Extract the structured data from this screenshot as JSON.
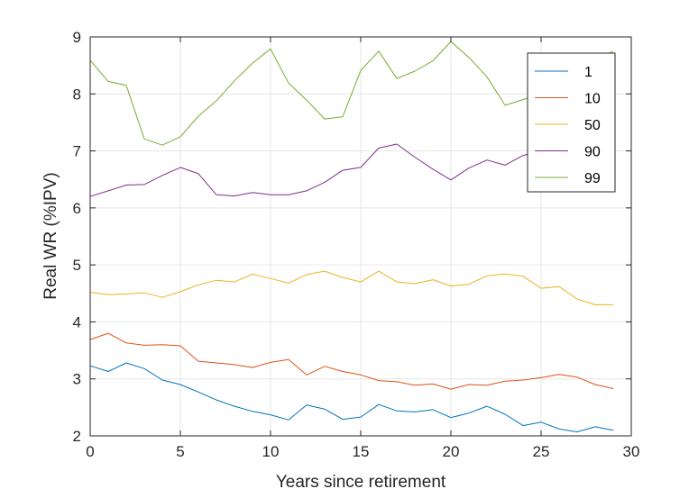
{
  "chart_data": {
    "type": "line",
    "xlabel": "Years since retirement",
    "ylabel": "Real WR (%IPV)",
    "xlim": [
      0,
      30
    ],
    "ylim": [
      2,
      9
    ],
    "xticks": [
      0,
      5,
      10,
      15,
      20,
      25,
      30
    ],
    "yticks": [
      2,
      3,
      4,
      5,
      6,
      7,
      8,
      9
    ],
    "grid": true,
    "legend_position": "top-right",
    "x": [
      0,
      1,
      2,
      3,
      4,
      5,
      6,
      7,
      8,
      9,
      10,
      11,
      12,
      13,
      14,
      15,
      16,
      17,
      18,
      19,
      20,
      21,
      22,
      23,
      24,
      25,
      26,
      27,
      28,
      29
    ],
    "series": [
      {
        "name": "1",
        "color": "#0072bd",
        "values": [
          3.23,
          3.13,
          3.28,
          3.18,
          2.98,
          2.9,
          2.77,
          2.63,
          2.52,
          2.43,
          2.37,
          2.28,
          2.54,
          2.47,
          2.29,
          2.33,
          2.55,
          2.44,
          2.42,
          2.46,
          2.32,
          2.4,
          2.52,
          2.38,
          2.18,
          2.24,
          2.12,
          2.07,
          2.16,
          2.1
        ]
      },
      {
        "name": "10",
        "color": "#d95319",
        "values": [
          3.69,
          3.8,
          3.63,
          3.59,
          3.6,
          3.58,
          3.31,
          3.28,
          3.25,
          3.2,
          3.29,
          3.34,
          3.07,
          3.22,
          3.13,
          3.07,
          2.97,
          2.95,
          2.89,
          2.91,
          2.82,
          2.9,
          2.89,
          2.96,
          2.98,
          3.02,
          3.08,
          3.03,
          2.9,
          2.83
        ]
      },
      {
        "name": "50",
        "color": "#edb120",
        "values": [
          4.52,
          4.48,
          4.49,
          4.51,
          4.43,
          4.53,
          4.65,
          4.73,
          4.7,
          4.84,
          4.76,
          4.68,
          4.83,
          4.89,
          4.78,
          4.7,
          4.89,
          4.7,
          4.67,
          4.74,
          4.63,
          4.66,
          4.81,
          4.84,
          4.8,
          4.59,
          4.62,
          4.4,
          4.3,
          4.3
        ]
      },
      {
        "name": "90",
        "color": "#7e2f8e",
        "values": [
          6.2,
          6.3,
          6.4,
          6.41,
          6.57,
          6.71,
          6.6,
          6.23,
          6.21,
          6.27,
          6.23,
          6.23,
          6.3,
          6.45,
          6.66,
          6.71,
          7.05,
          7.12,
          6.89,
          6.68,
          6.49,
          6.7,
          6.84,
          6.75,
          6.92,
          7.0,
          7.01,
          7.0,
          7.0,
          7.0
        ]
      },
      {
        "name": "99",
        "color": "#77ac30",
        "values": [
          8.59,
          8.22,
          8.15,
          7.21,
          7.1,
          7.25,
          7.61,
          7.88,
          8.23,
          8.54,
          8.79,
          8.19,
          7.89,
          7.56,
          7.6,
          8.41,
          8.75,
          8.27,
          8.4,
          8.58,
          8.92,
          8.64,
          8.3,
          7.8,
          7.9,
          8.0,
          8.2,
          8.4,
          8.6,
          8.75
        ]
      }
    ]
  }
}
